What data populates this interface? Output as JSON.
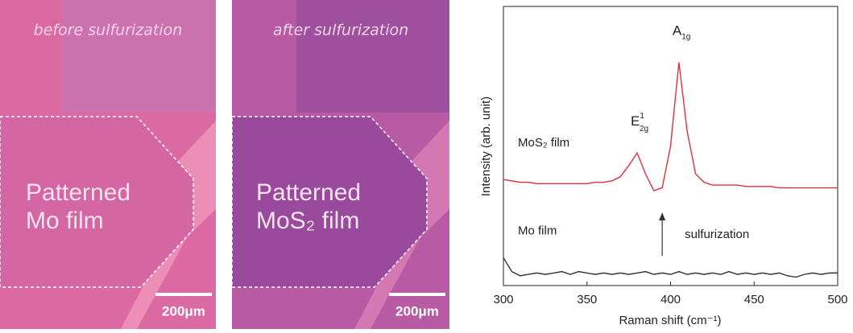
{
  "panels": [
    {
      "caption": "before sulfurization",
      "label_lines": [
        "Patterned",
        "Mo film"
      ],
      "scale_bar": "200μm"
    },
    {
      "caption": "after sulfurization",
      "label_lines": [
        "Patterned",
        "MoS₂ film"
      ],
      "scale_bar": "200μm"
    }
  ],
  "chart_data": {
    "type": "line",
    "x_label": "Raman shift (cm⁻¹)",
    "y_label": "Intensity (arb. unit)",
    "x": [
      300,
      305,
      310,
      315,
      320,
      325,
      330,
      335,
      340,
      345,
      350,
      355,
      360,
      365,
      370,
      375,
      380,
      385,
      390,
      395,
      400,
      405,
      410,
      415,
      420,
      425,
      430,
      435,
      440,
      445,
      450,
      455,
      460,
      465,
      470,
      475,
      480,
      485,
      490,
      495,
      500
    ],
    "series": [
      {
        "name": "MoS₂ film",
        "color": "#e0303a",
        "values": [
          38,
          37.5,
          37,
          37,
          36.5,
          36.5,
          36.5,
          36.5,
          36.5,
          36.5,
          36.5,
          37,
          37,
          37.5,
          39,
          43,
          47.5,
          40,
          34,
          35,
          50,
          80,
          55,
          40,
          37,
          36,
          36,
          36,
          36,
          35.5,
          35.5,
          35.5,
          35.5,
          35,
          35,
          35,
          35,
          35,
          35,
          35,
          35
        ]
      },
      {
        "name": "Mo film",
        "color": "#333333",
        "values": [
          10,
          5,
          3.5,
          4,
          4.5,
          4,
          4.5,
          5,
          4,
          5,
          4.5,
          4,
          4.5,
          4,
          4.5,
          4,
          4.5,
          5,
          4,
          4.5,
          4,
          5,
          4,
          4.5,
          4,
          4.5,
          4,
          5,
          4,
          4.5,
          4,
          4.5,
          4,
          4.5,
          3.5,
          3,
          4,
          4.5,
          4,
          4.5,
          4.5
        ]
      }
    ],
    "annotations": [
      {
        "text": "E",
        "sup": "1",
        "sub": "2g",
        "x": 380
      },
      {
        "text": "A",
        "sub": "1g",
        "x": 405
      },
      {
        "text": "sulfurization",
        "x": 395
      }
    ],
    "xlim": [
      300,
      500
    ],
    "xticks": [
      300,
      350,
      400,
      450,
      500
    ],
    "ylim": [
      0,
      100
    ]
  }
}
